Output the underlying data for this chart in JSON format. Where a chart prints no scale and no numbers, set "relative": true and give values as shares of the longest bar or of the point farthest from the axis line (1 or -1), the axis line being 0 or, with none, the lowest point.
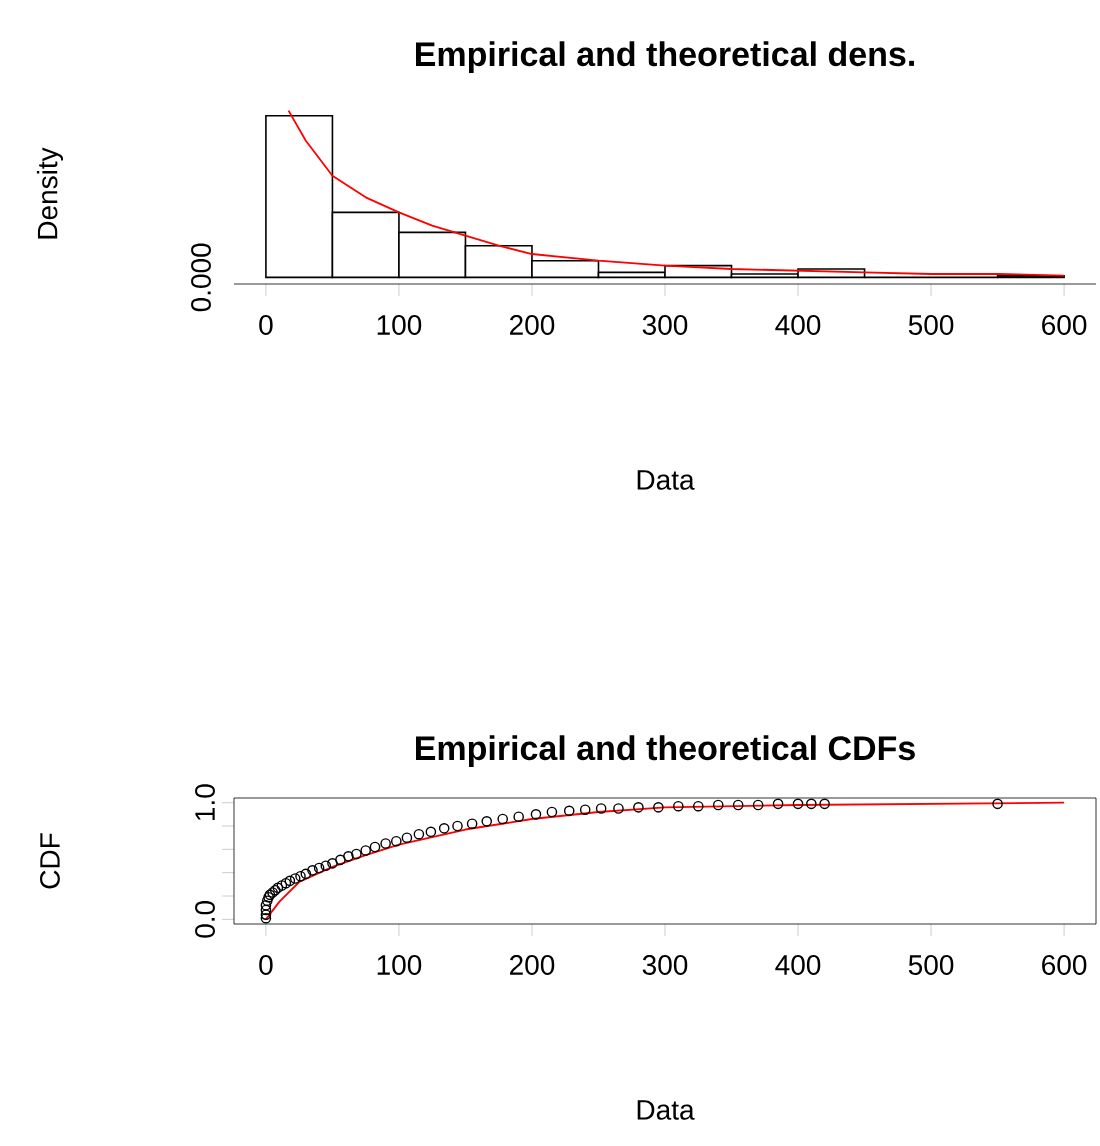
{
  "chart_data": [
    {
      "type": "histogram",
      "title": "Empirical and theoretical dens.",
      "xlabel": "Data",
      "ylabel": "Density",
      "relative": true,
      "annotations": [
        "0.000"
      ],
      "xlim": [
        -24,
        624
      ],
      "xticks": [
        0,
        100,
        200,
        300,
        400,
        500,
        600
      ],
      "series": [
        {
          "type": "histogram",
          "color": "#000000",
          "bins": [
            0,
            50,
            100,
            150,
            200,
            250,
            300,
            350,
            400,
            450,
            500,
            550,
            600
          ],
          "values": [
            0.97,
            0.39,
            0.27,
            0.19,
            0.1,
            0.03,
            0.07,
            0.02,
            0.05,
            0,
            0,
            0.01
          ]
        },
        {
          "type": "line",
          "color": "#ff0000",
          "x": [
            17,
            30,
            50,
            75,
            100,
            125,
            150,
            175,
            200,
            250,
            300,
            350,
            400,
            450,
            500,
            550,
            600
          ],
          "values": [
            1.0,
            0.82,
            0.61,
            0.48,
            0.39,
            0.31,
            0.25,
            0.19,
            0.14,
            0.1,
            0.07,
            0.05,
            0.04,
            0.03,
            0.02,
            0.02,
            0.01
          ]
        }
      ]
    },
    {
      "type": "scatter",
      "title": "Empirical and theoretical CDFs",
      "xlabel": "Data",
      "ylabel": "CDF",
      "xlim": [
        -24,
        624
      ],
      "ylim": [
        -0.04,
        1.04
      ],
      "xticks": [
        0,
        100,
        200,
        300,
        400,
        500,
        600
      ],
      "yticks": [
        {
          "value": 0,
          "label": "0.0"
        },
        {
          "value": 0.2,
          "label": null
        },
        {
          "value": 0.4,
          "label": null
        },
        {
          "value": 0.6,
          "label": null
        },
        {
          "value": 0.8,
          "label": null
        },
        {
          "value": 1,
          "label": "1.0"
        }
      ],
      "series": [
        {
          "type": "scatter",
          "color": "#000000",
          "marker": "circle",
          "x": [
            0,
            0,
            0,
            0,
            1,
            2,
            3,
            5,
            7,
            9,
            12,
            15,
            18,
            22,
            26,
            30,
            35,
            40,
            45,
            50,
            56,
            62,
            68,
            75,
            82,
            90,
            98,
            106,
            115,
            124,
            134,
            144,
            155,
            166,
            178,
            190,
            203,
            215,
            228,
            240,
            252,
            265,
            280,
            295,
            310,
            325,
            340,
            355,
            370,
            385,
            400,
            410,
            420,
            550
          ],
          "values": [
            0.01,
            0.04,
            0.08,
            0.12,
            0.16,
            0.19,
            0.21,
            0.23,
            0.25,
            0.27,
            0.29,
            0.31,
            0.33,
            0.35,
            0.37,
            0.39,
            0.42,
            0.44,
            0.46,
            0.48,
            0.51,
            0.54,
            0.56,
            0.59,
            0.62,
            0.65,
            0.67,
            0.7,
            0.73,
            0.75,
            0.78,
            0.8,
            0.82,
            0.84,
            0.86,
            0.88,
            0.9,
            0.92,
            0.93,
            0.94,
            0.95,
            0.95,
            0.96,
            0.96,
            0.97,
            0.97,
            0.98,
            0.98,
            0.98,
            0.99,
            0.99,
            0.99,
            0.99,
            0.99
          ]
        },
        {
          "type": "line",
          "color": "#ff0000",
          "x": [
            0,
            10,
            25,
            50,
            75,
            100,
            150,
            200,
            250,
            300,
            400,
            500,
            600
          ],
          "values": [
            0,
            0.15,
            0.32,
            0.45,
            0.55,
            0.64,
            0.77,
            0.86,
            0.92,
            0.96,
            0.98,
            0.99,
            1.0
          ]
        }
      ]
    }
  ]
}
